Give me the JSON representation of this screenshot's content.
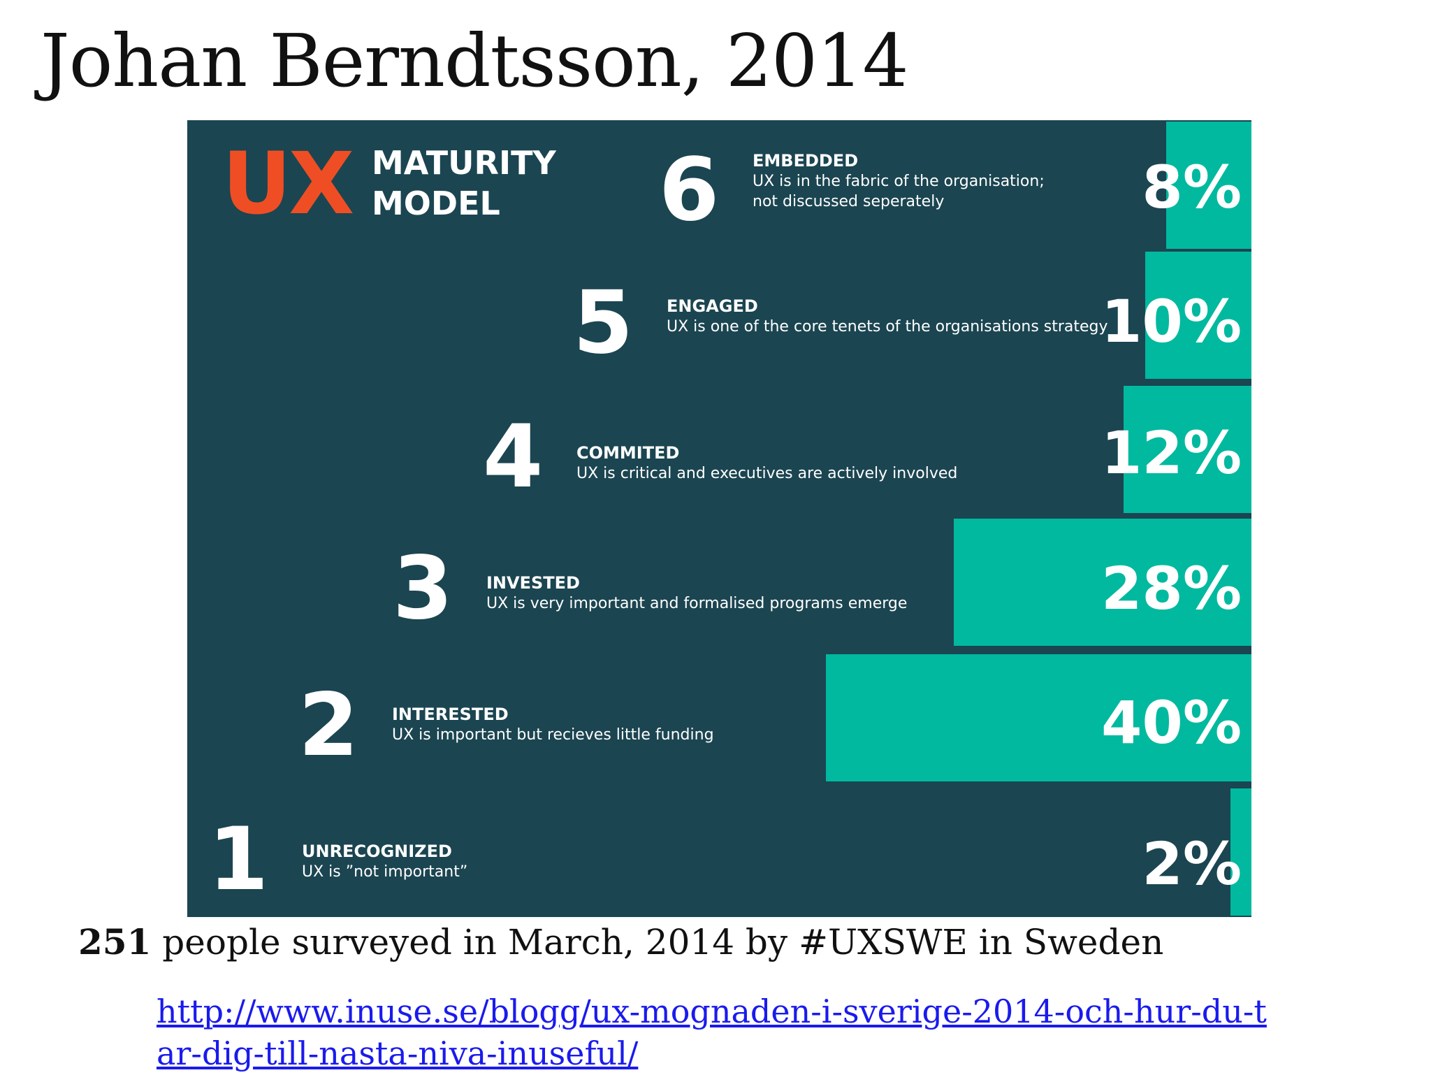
{
  "slide": {
    "title": "Johan Berndtsson, 2014",
    "survey_count": "251",
    "survey_text": "people surveyed in March, 2014 by #UXSWE in Sweden",
    "source_url": "http://www.inuse.se/blogg/ux-mognaden-i-sverige-2014-och-hur-du-tar-dig-till-nasta-niva-inuseful/"
  },
  "infographic": {
    "logo_mark": "UX",
    "logo_line1": "MATURITY",
    "logo_line2": "MODEL",
    "colors": {
      "background": "#1b4551",
      "bar": "#00b99f",
      "logo": "#ef4e24",
      "text": "#ffffff"
    }
  },
  "chart_data": {
    "type": "bar",
    "orientation": "horizontal",
    "categories": [
      "6",
      "5",
      "4",
      "3",
      "2",
      "1"
    ],
    "levels": [
      {
        "number": "6",
        "name": "EMBEDDED",
        "description": [
          "UX is in the fabric of the organisation;",
          "not discussed seperately"
        ],
        "value": 8,
        "label": "8%"
      },
      {
        "number": "5",
        "name": "ENGAGED",
        "description": [
          "UX is one of the core tenets of the organisations strategy"
        ],
        "value": 10,
        "label": "10%"
      },
      {
        "number": "4",
        "name": "COMMITED",
        "description": [
          "UX is critical and executives are actively involved"
        ],
        "value": 12,
        "label": "12%"
      },
      {
        "number": "3",
        "name": "INVESTED",
        "description": [
          "UX is very important and formalised programs emerge"
        ],
        "value": 28,
        "label": "28%"
      },
      {
        "number": "2",
        "name": "INTERESTED",
        "description": [
          "UX is important but recieves little funding"
        ],
        "value": 40,
        "label": "40%"
      },
      {
        "number": "1",
        "name": "UNRECOGNIZED",
        "description": [
          "UX is ”not important”"
        ],
        "value": 2,
        "label": "2%"
      }
    ],
    "values": [
      8,
      10,
      12,
      28,
      40,
      2
    ],
    "title": "",
    "xlabel": "",
    "ylabel": "",
    "xlim": [
      0,
      100
    ],
    "grid": false,
    "legend": "none"
  }
}
